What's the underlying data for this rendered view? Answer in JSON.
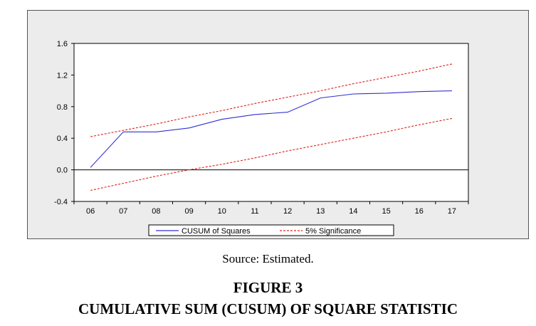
{
  "caption": {
    "source": "Source: Estimated.",
    "figure_label": "FIGURE 3",
    "figure_title": "CUMULATIVE SUM (CUSUM) OF SQUARE STATISTIC"
  },
  "colors": {
    "cusum_line": "#3030d0",
    "significance_line": "#e02020",
    "zero_line": "#000000",
    "panel_background": "#ececec",
    "plot_background": "#ffffff"
  },
  "chart_data": {
    "type": "line",
    "title": "",
    "xlabel": "",
    "ylabel": "",
    "categories": [
      "06",
      "07",
      "08",
      "09",
      "10",
      "11",
      "12",
      "13",
      "14",
      "15",
      "16",
      "17"
    ],
    "ylim": [
      -0.4,
      1.6
    ],
    "yticks": [
      "1.6",
      "1.2",
      "0.8",
      "0.4",
      "0.0",
      "-0.4"
    ],
    "ytick_values": [
      1.6,
      1.2,
      0.8,
      0.4,
      0.0,
      -0.4
    ],
    "grid": false,
    "legend_position": "bottom",
    "series": [
      {
        "name": "CUSUM of Squares",
        "style": "solid",
        "values": [
          0.03,
          0.48,
          0.48,
          0.53,
          0.64,
          0.7,
          0.73,
          0.91,
          0.96,
          0.97,
          0.99,
          1.0
        ]
      },
      {
        "name": "5% Significance",
        "style": "dashed",
        "values": [
          0.42,
          0.5,
          0.58,
          0.67,
          0.75,
          0.84,
          0.92,
          1.0,
          1.09,
          1.17,
          1.25,
          1.34
        ]
      },
      {
        "name": "",
        "style": "dashed",
        "values": [
          -0.26,
          -0.17,
          -0.08,
          0.0,
          0.07,
          0.15,
          0.24,
          0.32,
          0.4,
          0.48,
          0.57,
          0.65
        ]
      }
    ],
    "reference_line": {
      "y": 0.0
    }
  }
}
